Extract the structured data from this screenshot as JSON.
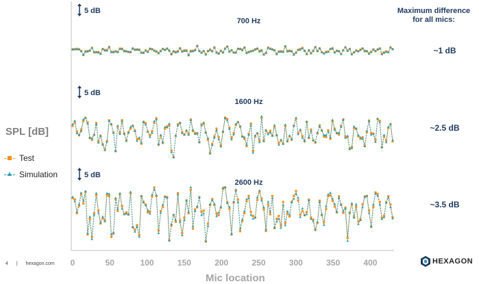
{
  "chart_data": {
    "type": "line",
    "xlabel": "Mic location",
    "ylabel": "SPL [dB]",
    "xlim": [
      0,
      430
    ],
    "x_ticks": [
      "0",
      "50",
      "100",
      "150",
      "200",
      "250",
      "300",
      "350",
      "400"
    ],
    "legend": {
      "position": "left",
      "entries": [
        "Test",
        "Simulation"
      ]
    },
    "series_colors": {
      "Test": "#f39022",
      "Simulation": "#2a9bb0"
    },
    "panels": [
      {
        "frequency": "700 Hz",
        "scale_bar": "5 dB",
        "max_difference": "~1 dB",
        "amplitude_db": 2.0
      },
      {
        "frequency": "1600 Hz",
        "scale_bar": "5 dB",
        "max_difference": "~2.5 dB",
        "amplitude_db": 6.0
      },
      {
        "frequency": "2600 Hz",
        "scale_bar": "5 dB",
        "max_difference": "~3.5 dB",
        "amplitude_db": 7.5
      }
    ],
    "max_difference_title": "Maximum difference for all mics:"
  },
  "footer": {
    "page": "4",
    "separator": "|",
    "site": "hexagon.com"
  },
  "brand": {
    "name": "HEXAGON"
  }
}
